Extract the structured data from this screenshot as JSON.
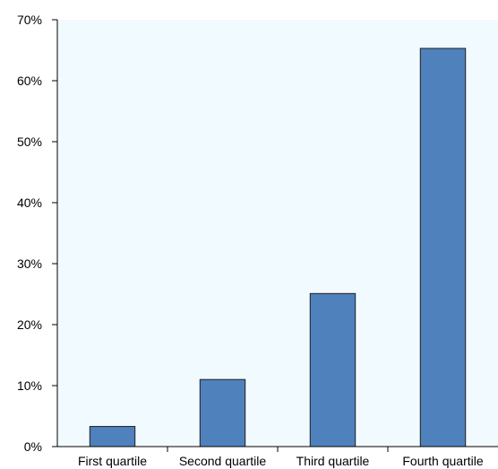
{
  "chart_data": {
    "type": "bar",
    "categories": [
      "First quartile",
      "Second quartile",
      "Third quartile",
      "Fourth quartile"
    ],
    "values": [
      3.3,
      11.0,
      25.1,
      65.3
    ],
    "ylim": [
      0,
      70
    ],
    "yticks": [
      0,
      10,
      20,
      30,
      40,
      50,
      60,
      70
    ],
    "ytick_labels": [
      "0%",
      "10%",
      "20%",
      "30%",
      "40%",
      "50%",
      "60%",
      "70%"
    ],
    "grid": false,
    "colors": {
      "bar_fill": "#4f81bd",
      "bar_stroke": "#1f1f1f",
      "plot_background": "#f1fafe",
      "axis": "#000000"
    }
  }
}
